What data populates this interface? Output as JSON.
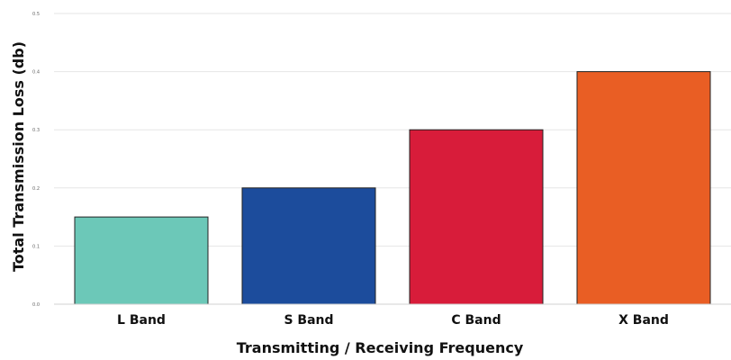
{
  "chart_data": {
    "type": "bar",
    "categories": [
      "L Band",
      "S Band",
      "C Band",
      "X Band"
    ],
    "values": [
      0.15,
      0.2,
      0.3,
      0.4
    ],
    "colors": [
      "#6cc8b8",
      "#1c4c9c",
      "#d81c3a",
      "#e95e24"
    ],
    "xlabel": "Transmitting / Receiving Frequency",
    "ylabel": "Total Transmission Loss (db)",
    "ylim": [
      0,
      0.5
    ],
    "yticks": [
      0,
      0.1,
      0.2,
      0.3,
      0.4,
      0.5
    ],
    "ytick_labels": [
      "0.0",
      "0.1",
      "0.2",
      "0.3",
      "0.4",
      "0.5"
    ],
    "grid": true,
    "legend": "none"
  }
}
